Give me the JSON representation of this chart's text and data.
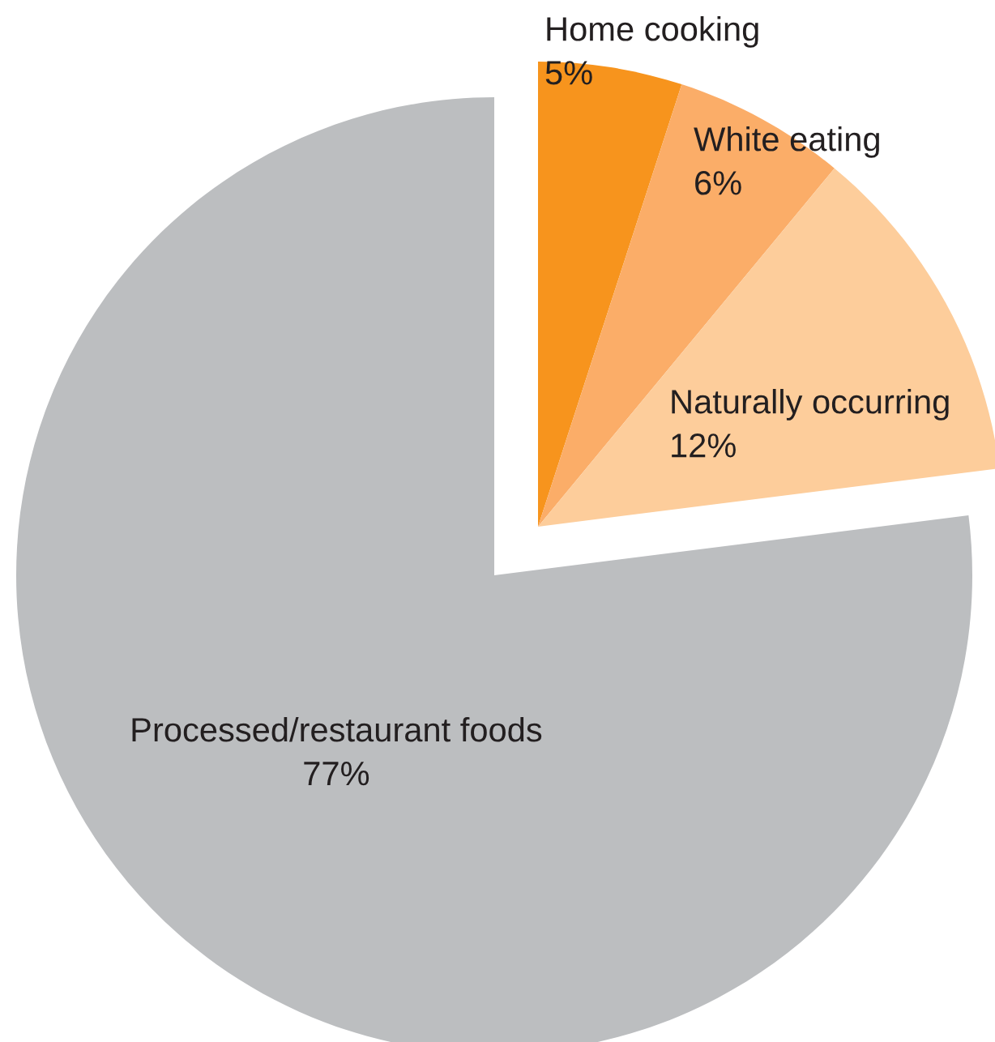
{
  "chart_data": {
    "type": "pie",
    "categories": [
      "Home cooking",
      "White eating",
      "Naturally occurring",
      "Processed/restaurant foods"
    ],
    "values": [
      5,
      6,
      12,
      77
    ],
    "colors": [
      "#f7941d",
      "#fbad68",
      "#fdcd9b",
      "#bcbec0"
    ],
    "value_labels": [
      "5%",
      "6%",
      "12%",
      "77%"
    ],
    "legend": false
  }
}
